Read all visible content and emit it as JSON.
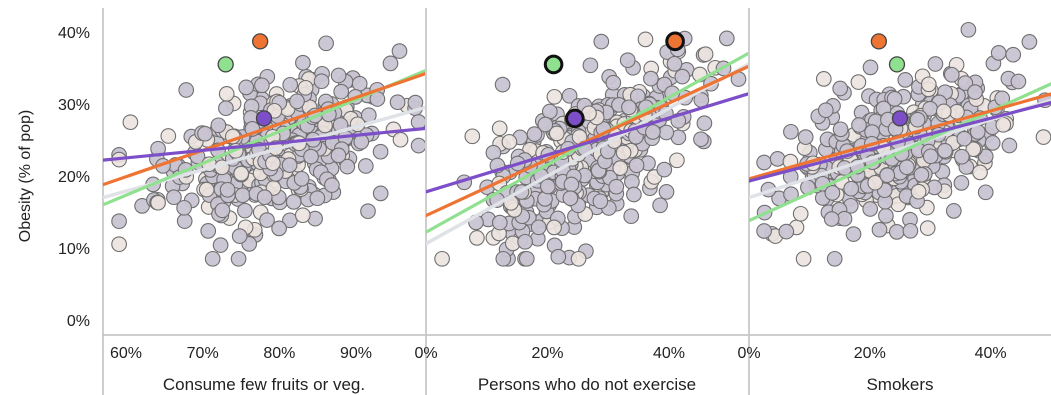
{
  "chart_data": {
    "type": "scatter",
    "ylabel": "Obesity (% of pop)",
    "ylim": [
      0,
      40
    ],
    "yticks": [
      "0%",
      "10%",
      "20%",
      "30%",
      "40%"
    ],
    "grid": false,
    "colors": {
      "point_fill": "#c9c4d2",
      "point_faded_fill": "#ece3df",
      "point_stroke": "#6f6f6f",
      "orange": "#ee7433",
      "green": "#8fe08f",
      "purple": "#7c4fc8",
      "gray_trend": "#dfe2e6"
    },
    "panels": [
      {
        "xlabel": "Consume few fruits or veg.",
        "xlim": [
          0.57,
          0.99
        ],
        "xticks": [
          "60%",
          "70%",
          "80%",
          "90%"
        ],
        "xtick_values": [
          0.6,
          0.7,
          0.8,
          0.9
        ],
        "trend_lines": [
          {
            "color": "orange",
            "x": [
              0.57,
              0.99
            ],
            "y": [
              18.8,
              34.2
            ]
          },
          {
            "color": "green",
            "x": [
              0.57,
              0.99
            ],
            "y": [
              16.0,
              34.6
            ]
          },
          {
            "color": "purple",
            "x": [
              0.57,
              0.99
            ],
            "y": [
              22.2,
              26.6
            ]
          },
          {
            "color": "gray_trend",
            "x": [
              0.57,
              0.99
            ],
            "y": [
              17.0,
              29.5
            ]
          }
        ],
        "highlighted_points": [
          {
            "color": "orange",
            "x": 0.775,
            "y": 38.7
          },
          {
            "color": "green",
            "x": 0.73,
            "y": 35.5
          },
          {
            "color": "purple",
            "x": 0.78,
            "y": 28.0
          }
        ]
      },
      {
        "xlabel": "Persons who do not exercise",
        "xlim": [
          0.0,
          0.53
        ],
        "xticks": [
          "0%",
          "20%",
          "40%"
        ],
        "xtick_values": [
          0.0,
          0.2,
          0.4
        ],
        "trend_lines": [
          {
            "color": "orange",
            "x": [
              0.0,
              0.53
            ],
            "y": [
              14.5,
              35.2
            ]
          },
          {
            "color": "green",
            "x": [
              0.0,
              0.53
            ],
            "y": [
              12.2,
              37.0
            ]
          },
          {
            "color": "purple",
            "x": [
              0.0,
              0.53
            ],
            "y": [
              17.8,
              31.4
            ]
          },
          {
            "color": "gray_trend",
            "x": [
              0.0,
              0.53
            ],
            "y": [
              10.6,
              35.5
            ]
          }
        ],
        "highlighted_points": [
          {
            "color": "orange",
            "x": 0.41,
            "y": 38.7
          },
          {
            "color": "green",
            "x": 0.21,
            "y": 35.5
          },
          {
            "color": "purple",
            "x": 0.245,
            "y": 28.0
          }
        ]
      },
      {
        "xlabel": "Smokers",
        "xlim": [
          0.0,
          0.5
        ],
        "xticks": [
          "0%",
          "20%",
          "40%"
        ],
        "xtick_values": [
          0.0,
          0.2,
          0.4
        ],
        "trend_lines": [
          {
            "color": "orange",
            "x": [
              0.0,
              0.5
            ],
            "y": [
              19.6,
              31.4
            ]
          },
          {
            "color": "green",
            "x": [
              0.0,
              0.5
            ],
            "y": [
              13.8,
              32.8
            ]
          },
          {
            "color": "purple",
            "x": [
              0.0,
              0.5
            ],
            "y": [
              19.3,
              30.2
            ]
          },
          {
            "color": "gray_trend",
            "x": [
              0.0,
              0.5
            ],
            "y": [
              17.0,
              30.5
            ]
          }
        ],
        "highlighted_points": [
          {
            "color": "orange",
            "x": 0.215,
            "y": 38.7
          },
          {
            "color": "green",
            "x": 0.245,
            "y": 35.5
          },
          {
            "color": "purple",
            "x": 0.25,
            "y": 28.0
          }
        ]
      }
    ]
  }
}
